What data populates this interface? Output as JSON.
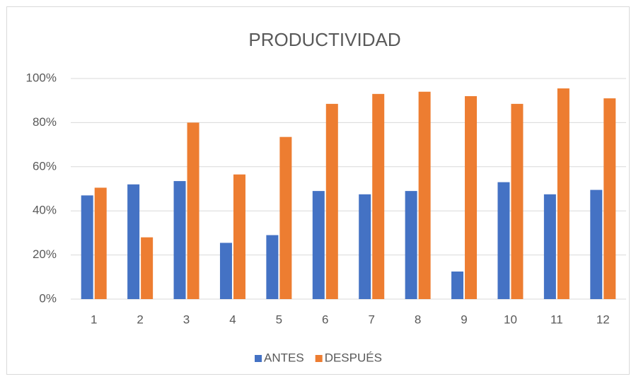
{
  "chart_data": {
    "type": "bar",
    "title": "PRODUCTIVIDAD",
    "categories": [
      "1",
      "2",
      "3",
      "4",
      "5",
      "6",
      "7",
      "8",
      "9",
      "10",
      "11",
      "12"
    ],
    "series": [
      {
        "name": "ANTES",
        "color": "#4472c4",
        "values": [
          47,
          52,
          53.5,
          25.5,
          29,
          49,
          47.5,
          49,
          12.5,
          53,
          47.5,
          49.5
        ]
      },
      {
        "name": "DESPUÉS",
        "color": "#ed7d31",
        "values": [
          50.5,
          28,
          80,
          56.5,
          73.5,
          88.5,
          93,
          94,
          92,
          88.5,
          95.5,
          91
        ]
      }
    ],
    "ylim": [
      0,
      100
    ],
    "yticks": [
      {
        "value": 0,
        "label": "0%"
      },
      {
        "value": 20,
        "label": "20%"
      },
      {
        "value": 40,
        "label": "40%"
      },
      {
        "value": 60,
        "label": "60%"
      },
      {
        "value": 80,
        "label": "80%"
      },
      {
        "value": 100,
        "label": "100%"
      }
    ],
    "grid": true,
    "legend": "bottom"
  }
}
